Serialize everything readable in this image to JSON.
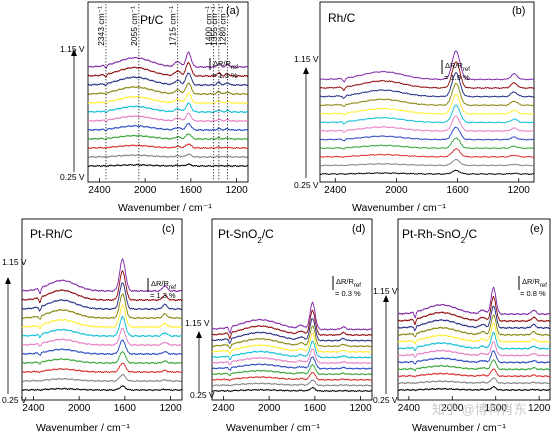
{
  "figure": {
    "watermark": "知乎 @博科肖东"
  },
  "series_colors": [
    "#000000",
    "#7f7f7f",
    "#d62728",
    "#2ca02c",
    "#1f3fbf",
    "#e377c2",
    "#00bcd4",
    "#ffee22",
    "#808000",
    "#1a237e",
    "#8b0000",
    "#7b1fa2"
  ],
  "chart_data": [
    {
      "type": "line",
      "panel": "(a)",
      "label": "Pt/C",
      "xlabel": "Wavenumber / cm⁻¹",
      "xlim": [
        2500,
        1100
      ],
      "xticks": [
        2400,
        2000,
        1600,
        1200
      ],
      "voltage_top": "1.15 V",
      "voltage_bottom": "0.25 V",
      "scale_bar": "1.3 %",
      "scale_label": "ΔR/R",
      "scale_sub": "ref",
      "annotations": [
        "2343 cm⁻¹",
        "2055 cm⁻¹",
        "1715 cm⁻¹",
        "1400 cm⁻¹",
        "1355 cm⁻¹",
        "1280 cm⁻¹"
      ],
      "annotation_positions": [
        2343,
        2055,
        1715,
        1400,
        1355,
        1280
      ],
      "bands": [
        {
          "x": 1620,
          "w": 22,
          "a": 11
        },
        {
          "x": 2090,
          "w": 140,
          "a": 7
        },
        {
          "x": 1715,
          "w": 25,
          "a": 4
        },
        {
          "x": 1355,
          "w": 15,
          "a": 2.5
        },
        {
          "x": 1280,
          "w": 15,
          "a": 2
        },
        {
          "x": 2343,
          "w": 8,
          "a": -2
        }
      ],
      "n_series": 12
    },
    {
      "type": "line",
      "panel": "(b)",
      "label": "Rh/C",
      "xlabel": "Wavenumber / cm⁻¹",
      "xlim": [
        2500,
        1100
      ],
      "xticks": [
        2400,
        2000,
        1600,
        1200
      ],
      "voltage_top": "1.15 V",
      "voltage_bottom": "0.25 V",
      "scale_bar": "1.9 %",
      "scale_label": "ΔR/R",
      "scale_sub": "ref",
      "bands": [
        {
          "x": 1610,
          "w": 25,
          "a": 26
        },
        {
          "x": 2090,
          "w": 130,
          "a": 7
        },
        {
          "x": 1230,
          "w": 20,
          "a": 5
        },
        {
          "x": 2343,
          "w": 8,
          "a": -3
        }
      ],
      "n_series": 12
    },
    {
      "type": "line",
      "panel": "(c)",
      "label": "Pt-Rh/C",
      "xlabel": "Wavenumber / cm⁻¹",
      "xlim": [
        2500,
        1100
      ],
      "xticks": [
        2400,
        2000,
        1600,
        1200
      ],
      "voltage_top": "1.15 V",
      "voltage_bottom": "0.25 V",
      "scale_bar": "1.3 %",
      "scale_label": "ΔR/R",
      "scale_sub": "ref",
      "bands": [
        {
          "x": 1620,
          "w": 25,
          "a": 24
        },
        {
          "x": 2150,
          "w": 120,
          "a": 8
        },
        {
          "x": 1250,
          "w": 20,
          "a": 4
        },
        {
          "x": 2343,
          "w": 8,
          "a": -4
        }
      ],
      "n_series": 12
    },
    {
      "type": "line",
      "panel": "(d)",
      "label": "Pt-SnO",
      "label_sub": "2",
      "label_tail": "/C",
      "xlabel": "Wavenumber / cm⁻¹",
      "xlim": [
        2500,
        1100
      ],
      "xticks": [
        2400,
        2000,
        1600,
        1200
      ],
      "voltage_top": "1.15 V",
      "voltage_bottom": "0.25 V",
      "scale_bar": "0.3 %",
      "scale_label": "ΔR/R",
      "scale_sub": "ref",
      "bands": [
        {
          "x": 1620,
          "w": 22,
          "a": 22
        },
        {
          "x": 2080,
          "w": 160,
          "a": 8
        },
        {
          "x": 1720,
          "w": 25,
          "a": 3
        },
        {
          "x": 1350,
          "w": 20,
          "a": 2
        },
        {
          "x": 2343,
          "w": 8,
          "a": -5
        }
      ],
      "n_series": 12
    },
    {
      "type": "line",
      "panel": "(e)",
      "label": "Pt-Rh-SnO",
      "label_sub": "2",
      "label_tail": "/C",
      "xlabel": "Wavenumber / cm⁻¹",
      "xlim": [
        2500,
        1100
      ],
      "xticks": [
        2400,
        2000,
        1600,
        1200
      ],
      "voltage_top": "1.15 V",
      "voltage_bottom": "0.25 V",
      "scale_bar": "0.8 %",
      "scale_label": "ΔR/R",
      "scale_sub": "ref",
      "bands": [
        {
          "x": 1620,
          "w": 22,
          "a": 20
        },
        {
          "x": 2100,
          "w": 140,
          "a": 7
        },
        {
          "x": 1720,
          "w": 25,
          "a": 3
        },
        {
          "x": 1250,
          "w": 20,
          "a": 3
        },
        {
          "x": 2343,
          "w": 8,
          "a": -4
        }
      ],
      "n_series": 12
    }
  ]
}
